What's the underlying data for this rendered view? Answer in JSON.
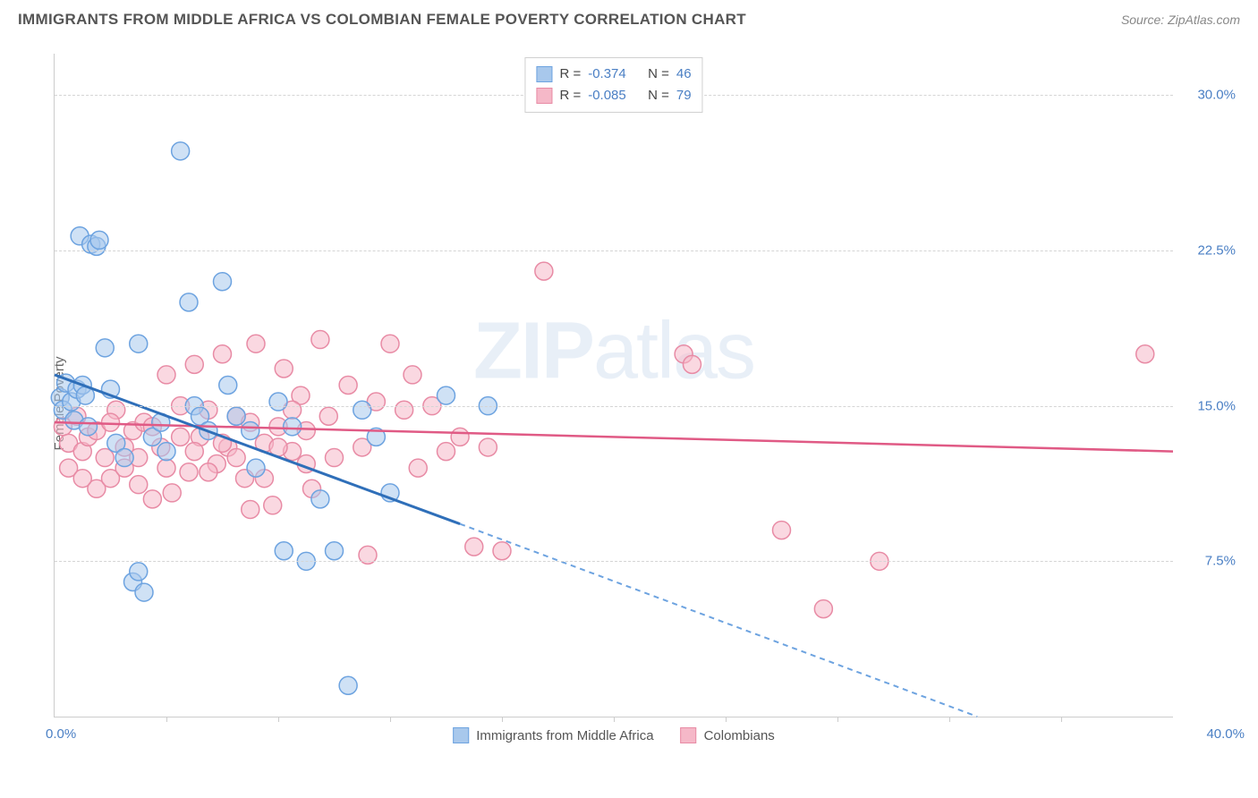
{
  "header": {
    "title": "IMMIGRANTS FROM MIDDLE AFRICA VS COLOMBIAN FEMALE POVERTY CORRELATION CHART",
    "source": "Source: ZipAtlas.com"
  },
  "watermark": {
    "prefix": "ZIP",
    "suffix": "atlas"
  },
  "chart": {
    "type": "scatter",
    "y_label": "Female Poverty",
    "background_color": "#ffffff",
    "grid_color": "#d5d5d5",
    "axis_color": "#cccccc",
    "tick_label_color": "#4a7fc4",
    "xlim": [
      0,
      40
    ],
    "ylim": [
      0,
      32
    ],
    "x_origin_label": "0.0%",
    "x_max_label": "40.0%",
    "y_ticks": [
      {
        "value": 7.5,
        "label": "7.5%"
      },
      {
        "value": 15.0,
        "label": "15.0%"
      },
      {
        "value": 22.5,
        "label": "22.5%"
      },
      {
        "value": 30.0,
        "label": "30.0%"
      }
    ],
    "x_tick_positions": [
      4,
      8,
      12,
      16,
      20,
      24,
      28,
      32,
      36
    ],
    "marker_radius": 10,
    "marker_opacity": 0.55,
    "series": [
      {
        "id": "middle_africa",
        "label": "Immigrants from Middle Africa",
        "fill_color": "#a8c8ec",
        "stroke_color": "#6da3e0",
        "line_color": "#2f6fb9",
        "r_value": "-0.374",
        "n_value": "46",
        "trend": {
          "x1": 0,
          "y1": 16.5,
          "x2": 14.5,
          "y2": 9.3,
          "dash_x2": 33,
          "dash_y2": 0
        },
        "points": [
          [
            0.2,
            15.4
          ],
          [
            0.3,
            14.8
          ],
          [
            0.4,
            16.1
          ],
          [
            0.6,
            15.2
          ],
          [
            0.7,
            14.3
          ],
          [
            0.8,
            15.8
          ],
          [
            0.9,
            23.2
          ],
          [
            1.0,
            16.0
          ],
          [
            1.1,
            15.5
          ],
          [
            1.2,
            14.0
          ],
          [
            1.3,
            22.8
          ],
          [
            1.5,
            22.7
          ],
          [
            1.6,
            23.0
          ],
          [
            1.8,
            17.8
          ],
          [
            2.0,
            15.8
          ],
          [
            2.2,
            13.2
          ],
          [
            2.5,
            12.5
          ],
          [
            2.8,
            6.5
          ],
          [
            3.0,
            7.0
          ],
          [
            3.0,
            18.0
          ],
          [
            3.2,
            6.0
          ],
          [
            3.5,
            13.5
          ],
          [
            3.8,
            14.2
          ],
          [
            4.0,
            12.8
          ],
          [
            4.5,
            27.3
          ],
          [
            4.8,
            20.0
          ],
          [
            5.0,
            15.0
          ],
          [
            5.2,
            14.5
          ],
          [
            5.5,
            13.8
          ],
          [
            6.0,
            21.0
          ],
          [
            6.2,
            16.0
          ],
          [
            6.5,
            14.5
          ],
          [
            7.0,
            13.8
          ],
          [
            7.2,
            12.0
          ],
          [
            8.0,
            15.2
          ],
          [
            8.2,
            8.0
          ],
          [
            8.5,
            14.0
          ],
          [
            9.0,
            7.5
          ],
          [
            9.5,
            10.5
          ],
          [
            10.0,
            8.0
          ],
          [
            10.5,
            1.5
          ],
          [
            11.0,
            14.8
          ],
          [
            11.5,
            13.5
          ],
          [
            12.0,
            10.8
          ],
          [
            14.0,
            15.5
          ],
          [
            15.5,
            15.0
          ]
        ]
      },
      {
        "id": "colombians",
        "label": "Colombians",
        "fill_color": "#f5b8c8",
        "stroke_color": "#e88ba5",
        "line_color": "#e05a85",
        "r_value": "-0.085",
        "n_value": "79",
        "trend": {
          "x1": 0,
          "y1": 14.2,
          "x2": 40,
          "y2": 12.8
        },
        "points": [
          [
            0.3,
            14.0
          ],
          [
            0.5,
            13.2
          ],
          [
            0.8,
            14.5
          ],
          [
            1.0,
            12.8
          ],
          [
            1.2,
            13.5
          ],
          [
            1.5,
            11.0
          ],
          [
            1.8,
            12.5
          ],
          [
            2.0,
            11.5
          ],
          [
            2.2,
            14.8
          ],
          [
            2.5,
            12.0
          ],
          [
            2.8,
            13.8
          ],
          [
            3.0,
            11.2
          ],
          [
            3.2,
            14.2
          ],
          [
            3.5,
            10.5
          ],
          [
            3.8,
            13.0
          ],
          [
            4.0,
            16.5
          ],
          [
            4.2,
            10.8
          ],
          [
            4.5,
            15.0
          ],
          [
            4.8,
            11.8
          ],
          [
            5.0,
            17.0
          ],
          [
            5.2,
            13.5
          ],
          [
            5.5,
            14.8
          ],
          [
            5.8,
            12.2
          ],
          [
            6.0,
            17.5
          ],
          [
            6.2,
            13.0
          ],
          [
            6.5,
            14.5
          ],
          [
            6.8,
            11.5
          ],
          [
            7.0,
            10.0
          ],
          [
            7.2,
            18.0
          ],
          [
            7.5,
            13.2
          ],
          [
            7.8,
            10.2
          ],
          [
            8.0,
            14.0
          ],
          [
            8.2,
            16.8
          ],
          [
            8.5,
            12.8
          ],
          [
            8.8,
            15.5
          ],
          [
            9.0,
            13.8
          ],
          [
            9.2,
            11.0
          ],
          [
            9.5,
            18.2
          ],
          [
            9.8,
            14.5
          ],
          [
            10.0,
            12.5
          ],
          [
            10.5,
            16.0
          ],
          [
            11.0,
            13.0
          ],
          [
            11.2,
            7.8
          ],
          [
            11.5,
            15.2
          ],
          [
            12.0,
            18.0
          ],
          [
            12.5,
            14.8
          ],
          [
            12.8,
            16.5
          ],
          [
            13.0,
            12.0
          ],
          [
            13.5,
            15.0
          ],
          [
            14.0,
            12.8
          ],
          [
            14.5,
            13.5
          ],
          [
            15.0,
            8.2
          ],
          [
            15.5,
            13.0
          ],
          [
            16.0,
            8.0
          ],
          [
            17.5,
            21.5
          ],
          [
            22.5,
            17.5
          ],
          [
            22.8,
            17.0
          ],
          [
            26.0,
            9.0
          ],
          [
            27.5,
            5.2
          ],
          [
            29.5,
            7.5
          ],
          [
            39.0,
            17.5
          ],
          [
            0.5,
            12.0
          ],
          [
            1.0,
            11.5
          ],
          [
            1.5,
            13.8
          ],
          [
            2.0,
            14.2
          ],
          [
            2.5,
            13.0
          ],
          [
            3.0,
            12.5
          ],
          [
            3.5,
            14.0
          ],
          [
            4.0,
            12.0
          ],
          [
            4.5,
            13.5
          ],
          [
            5.0,
            12.8
          ],
          [
            5.5,
            11.8
          ],
          [
            6.0,
            13.2
          ],
          [
            6.5,
            12.5
          ],
          [
            7.0,
            14.2
          ],
          [
            7.5,
            11.5
          ],
          [
            8.0,
            13.0
          ],
          [
            8.5,
            14.8
          ],
          [
            9.0,
            12.2
          ]
        ]
      }
    ]
  },
  "legend_top_labels": {
    "r_prefix": "R =",
    "n_prefix": "N ="
  }
}
